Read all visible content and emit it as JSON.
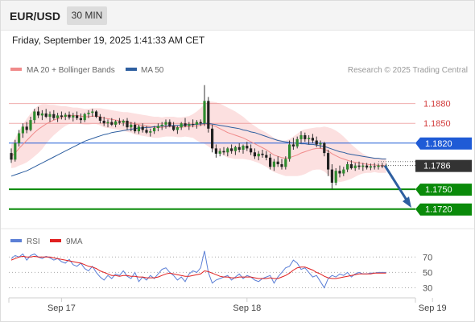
{
  "header": {
    "symbol": "EUR/USD",
    "timeframe": "30 MIN",
    "datetime": "Friday, September 19, 2025 1:41:33 AM CET"
  },
  "legend": {
    "ma20_label": "MA 20 + Bollinger Bands",
    "ma50_label": "MA 50",
    "credit": "Research © 2025 Trading Central",
    "ma20_color": "#f08a8a",
    "ma50_color": "#2e5fa0"
  },
  "rsi_legend": {
    "rsi_label": "RSI",
    "ma_label": "9MA",
    "rsi_color": "#5b7fd6",
    "ma_color": "#e02020"
  },
  "chart_data": {
    "type": "candlestick",
    "price_ylim": [
      1.1705,
      1.1915
    ],
    "levels": [
      {
        "label": "1.1880",
        "value": 1.188,
        "kind": "resistance",
        "color": "#e36b6b"
      },
      {
        "label": "1.1850",
        "value": 1.185,
        "kind": "resistance",
        "color": "#e36b6b"
      },
      {
        "label": "1.1820",
        "value": 1.182,
        "kind": "pivot",
        "color": "#1f5bd6"
      },
      {
        "label": "1.1786",
        "value": 1.1786,
        "kind": "last",
        "color": "#333333"
      },
      {
        "label": "1.1750",
        "value": 1.175,
        "kind": "support",
        "color": "#0a8a0a"
      },
      {
        "label": "1.1720",
        "value": 1.172,
        "kind": "support",
        "color": "#0a8a0a"
      }
    ],
    "x_ticks": [
      {
        "label": "Sep 17",
        "index": 13
      },
      {
        "label": "Sep 18",
        "index": 61
      },
      {
        "label": "Sep 19",
        "index": 109
      }
    ],
    "candles": [
      [
        1.1805,
        1.1812,
        1.179,
        1.1795
      ],
      [
        1.1795,
        1.1825,
        1.1792,
        1.182
      ],
      [
        1.182,
        1.184,
        1.1815,
        1.1835
      ],
      [
        1.1835,
        1.185,
        1.1828,
        1.1845
      ],
      [
        1.1845,
        1.1852,
        1.1835,
        1.184
      ],
      [
        1.184,
        1.186,
        1.1838,
        1.1855
      ],
      [
        1.1855,
        1.1872,
        1.185,
        1.1868
      ],
      [
        1.1868,
        1.1875,
        1.1858,
        1.1862
      ],
      [
        1.1862,
        1.187,
        1.1855,
        1.1865
      ],
      [
        1.1865,
        1.1872,
        1.1858,
        1.186
      ],
      [
        1.186,
        1.1868,
        1.1852,
        1.1864
      ],
      [
        1.1864,
        1.187,
        1.1855,
        1.1858
      ],
      [
        1.1858,
        1.1866,
        1.1852,
        1.1862
      ],
      [
        1.1862,
        1.1868,
        1.1856,
        1.186
      ],
      [
        1.186,
        1.1866,
        1.1855,
        1.1863
      ],
      [
        1.1863,
        1.1868,
        1.1856,
        1.1859
      ],
      [
        1.1859,
        1.1866,
        1.1853,
        1.1862
      ],
      [
        1.1862,
        1.1868,
        1.1855,
        1.1858
      ],
      [
        1.1858,
        1.1865,
        1.185,
        1.1855
      ],
      [
        1.1855,
        1.1866,
        1.1852,
        1.1864
      ],
      [
        1.1864,
        1.187,
        1.1858,
        1.1866
      ],
      [
        1.1866,
        1.1872,
        1.186,
        1.1868
      ],
      [
        1.1868,
        1.187,
        1.1858,
        1.186
      ],
      [
        1.186,
        1.1864,
        1.185,
        1.1854
      ],
      [
        1.1854,
        1.186,
        1.1846,
        1.185
      ],
      [
        1.185,
        1.1856,
        1.1844,
        1.1852
      ],
      [
        1.1852,
        1.1858,
        1.1846,
        1.1848
      ],
      [
        1.1848,
        1.1855,
        1.1844,
        1.1853
      ],
      [
        1.1853,
        1.1858,
        1.1848,
        1.1851
      ],
      [
        1.1851,
        1.1856,
        1.1846,
        1.1854
      ],
      [
        1.1854,
        1.1858,
        1.184,
        1.1844
      ],
      [
        1.1844,
        1.1852,
        1.1838,
        1.1848
      ],
      [
        1.1848,
        1.1852,
        1.1835,
        1.1838
      ],
      [
        1.1838,
        1.1848,
        1.1834,
        1.1845
      ],
      [
        1.1845,
        1.185,
        1.1836,
        1.184
      ],
      [
        1.184,
        1.1846,
        1.1834,
        1.1836
      ],
      [
        1.1836,
        1.1842,
        1.183,
        1.1838
      ],
      [
        1.1838,
        1.1846,
        1.1834,
        1.1843
      ],
      [
        1.1843,
        1.185,
        1.1838,
        1.1846
      ],
      [
        1.1846,
        1.1852,
        1.184,
        1.1848
      ],
      [
        1.1848,
        1.1856,
        1.1842,
        1.1852
      ],
      [
        1.1852,
        1.1856,
        1.1844,
        1.1846
      ],
      [
        1.1846,
        1.1852,
        1.1838,
        1.184
      ],
      [
        1.184,
        1.1846,
        1.1834,
        1.1844
      ],
      [
        1.1844,
        1.1852,
        1.184,
        1.185
      ],
      [
        1.185,
        1.1858,
        1.1844,
        1.1846
      ],
      [
        1.1846,
        1.1852,
        1.184,
        1.1849
      ],
      [
        1.1849,
        1.1856,
        1.1844,
        1.1848
      ],
      [
        1.1848,
        1.1855,
        1.1842,
        1.1852
      ],
      [
        1.1852,
        1.1856,
        1.1846,
        1.185
      ],
      [
        1.185,
        1.1908,
        1.1846,
        1.1884
      ],
      [
        1.1884,
        1.189,
        1.1836,
        1.1842
      ],
      [
        1.1842,
        1.1848,
        1.1806,
        1.1812
      ],
      [
        1.1812,
        1.1818,
        1.1798,
        1.1804
      ],
      [
        1.1804,
        1.1812,
        1.18,
        1.1808
      ],
      [
        1.1808,
        1.1814,
        1.1802,
        1.1806
      ],
      [
        1.1806,
        1.1814,
        1.18,
        1.1812
      ],
      [
        1.1812,
        1.1818,
        1.1804,
        1.1808
      ],
      [
        1.1808,
        1.1816,
        1.1802,
        1.1814
      ],
      [
        1.1814,
        1.182,
        1.1806,
        1.181
      ],
      [
        1.181,
        1.1818,
        1.1804,
        1.1816
      ],
      [
        1.1816,
        1.1822,
        1.1808,
        1.1812
      ],
      [
        1.1812,
        1.1818,
        1.1802,
        1.1806
      ],
      [
        1.1806,
        1.1812,
        1.1796,
        1.18
      ],
      [
        1.18,
        1.1808,
        1.1794,
        1.1804
      ],
      [
        1.1804,
        1.181,
        1.1798,
        1.1802
      ],
      [
        1.1802,
        1.1808,
        1.1794,
        1.1798
      ],
      [
        1.1798,
        1.1804,
        1.178,
        1.1784
      ],
      [
        1.1784,
        1.1796,
        1.1778,
        1.1792
      ],
      [
        1.1792,
        1.18,
        1.1784,
        1.1788
      ],
      [
        1.1788,
        1.1796,
        1.178,
        1.1784
      ],
      [
        1.1784,
        1.18,
        1.178,
        1.1796
      ],
      [
        1.1796,
        1.1824,
        1.1792,
        1.1818
      ],
      [
        1.1818,
        1.1828,
        1.181,
        1.1815
      ],
      [
        1.1815,
        1.183,
        1.1812,
        1.1826
      ],
      [
        1.1826,
        1.1838,
        1.182,
        1.1832
      ],
      [
        1.1832,
        1.1836,
        1.1822,
        1.1826
      ],
      [
        1.1826,
        1.1832,
        1.1818,
        1.1828
      ],
      [
        1.1828,
        1.1834,
        1.182,
        1.1824
      ],
      [
        1.1824,
        1.183,
        1.1814,
        1.1818
      ],
      [
        1.1818,
        1.1824,
        1.1812,
        1.182
      ],
      [
        1.182,
        1.1822,
        1.18,
        1.1805
      ],
      [
        1.1805,
        1.181,
        1.177,
        1.178
      ],
      [
        1.178,
        1.1788,
        1.175,
        1.176
      ],
      [
        1.176,
        1.1782,
        1.1756,
        1.1778
      ],
      [
        1.1778,
        1.1786,
        1.1768,
        1.1774
      ],
      [
        1.1774,
        1.1784,
        1.177,
        1.178
      ],
      [
        1.178,
        1.1792,
        1.1776,
        1.1788
      ],
      [
        1.1788,
        1.1794,
        1.178,
        1.1782
      ],
      [
        1.1782,
        1.179,
        1.1778,
        1.1786
      ],
      [
        1.1786,
        1.1792,
        1.178,
        1.1784
      ],
      [
        1.1784,
        1.179,
        1.1778,
        1.1786
      ],
      [
        1.1786,
        1.179,
        1.178,
        1.1783
      ],
      [
        1.1783,
        1.1789,
        1.1779,
        1.1785
      ],
      [
        1.1785,
        1.179,
        1.178,
        1.1784
      ],
      [
        1.1784,
        1.1789,
        1.178,
        1.1786
      ],
      [
        1.1786,
        1.179,
        1.1782,
        1.1785
      ],
      [
        1.1785,
        1.1789,
        1.1781,
        1.1786
      ]
    ],
    "ma20": [
      1.18,
      1.1805,
      1.1812,
      1.1818,
      1.1824,
      1.183,
      1.1836,
      1.1841,
      1.1845,
      1.1849,
      1.1852,
      1.1855,
      1.1857,
      1.1859,
      1.1861,
      1.1862,
      1.1862,
      1.1862,
      1.1861,
      1.186,
      1.186,
      1.1861,
      1.1861,
      1.186,
      1.1858,
      1.1857,
      1.1856,
      1.1855,
      1.1854,
      1.1853,
      1.1852,
      1.1851,
      1.1849,
      1.1848,
      1.1847,
      1.1846,
      1.1845,
      1.1844,
      1.1844,
      1.1844,
      1.1845,
      1.1845,
      1.1845,
      1.1844,
      1.1844,
      1.1845,
      1.1845,
      1.1846,
      1.1846,
      1.1847,
      1.1849,
      1.1849,
      1.1847,
      1.1845,
      1.1842,
      1.1839,
      1.1836,
      1.1834,
      1.1832,
      1.183,
      1.1828,
      1.1825,
      1.1822,
      1.1819,
      1.1816,
      1.1813,
      1.181,
      1.1806,
      1.1802,
      1.18,
      1.1798,
      1.1797,
      1.1798,
      1.18,
      1.1802,
      1.1805,
      1.1807,
      1.1809,
      1.1811,
      1.1812,
      1.1812,
      1.1811,
      1.1808,
      1.1804,
      1.1801,
      1.1798,
      1.1796,
      1.1794,
      1.1792,
      1.1791,
      1.179,
      1.1789,
      1.1788,
      1.1787,
      1.1787,
      1.1786,
      1.1786,
      1.1786
    ],
    "ma50": [
      1.177,
      1.1772,
      1.1774,
      1.1776,
      1.1778,
      1.1781,
      1.1784,
      1.1787,
      1.179,
      1.1793,
      1.1796,
      1.1799,
      1.1802,
      1.1805,
      1.1808,
      1.1811,
      1.1814,
      1.1817,
      1.182,
      1.1823,
      1.1825,
      1.1827,
      1.1829,
      1.1831,
      1.1833,
      1.1834,
      1.1836,
      1.1837,
      1.1838,
      1.1839,
      1.184,
      1.1841,
      1.1842,
      1.1843,
      1.1843,
      1.1844,
      1.1844,
      1.1845,
      1.1845,
      1.1846,
      1.1846,
      1.1846,
      1.1847,
      1.1847,
      1.1847,
      1.1848,
      1.1848,
      1.1848,
      1.1849,
      1.1849,
      1.185,
      1.185,
      1.1849,
      1.1848,
      1.1847,
      1.1846,
      1.1845,
      1.1844,
      1.1843,
      1.1842,
      1.184,
      1.1839,
      1.1837,
      1.1836,
      1.1834,
      1.1832,
      1.183,
      1.1828,
      1.1826,
      1.1824,
      1.1823,
      1.1822,
      1.1821,
      1.182,
      1.182,
      1.1819,
      1.1819,
      1.1818,
      1.1818,
      1.1817,
      1.1816,
      1.1815,
      1.1813,
      1.1811,
      1.1809,
      1.1807,
      1.1806,
      1.1804,
      1.1803,
      1.1802,
      1.1801,
      1.18,
      1.1799,
      1.1798,
      1.1797,
      1.1797,
      1.1796,
      1.1796
    ],
    "bb_width": [
      0.0018,
      0.0022,
      0.0026,
      0.003,
      0.0033,
      0.0035,
      0.0036,
      0.0036,
      0.0034,
      0.003,
      0.0026,
      0.0023,
      0.002,
      0.0017,
      0.0015,
      0.0013,
      0.0012,
      0.0012,
      0.0012,
      0.0012,
      0.0012,
      0.0012,
      0.0012,
      0.0013,
      0.0014,
      0.0014,
      0.0014,
      0.0014,
      0.0014,
      0.0014,
      0.0015,
      0.0015,
      0.0016,
      0.0016,
      0.0016,
      0.0016,
      0.0016,
      0.0016,
      0.0016,
      0.0015,
      0.0015,
      0.0015,
      0.0015,
      0.0015,
      0.0015,
      0.0015,
      0.0016,
      0.0018,
      0.0022,
      0.0026,
      0.003,
      0.0034,
      0.0036,
      0.0037,
      0.0038,
      0.0038,
      0.0038,
      0.0037,
      0.0036,
      0.0034,
      0.0032,
      0.003,
      0.0028,
      0.0027,
      0.0026,
      0.0026,
      0.0026,
      0.0026,
      0.0026,
      0.0026,
      0.0026,
      0.0027,
      0.0028,
      0.003,
      0.0032,
      0.0034,
      0.0034,
      0.0033,
      0.0032,
      0.0032,
      0.0032,
      0.0034,
      0.0036,
      0.0038,
      0.0038,
      0.0037,
      0.0034,
      0.003,
      0.0026,
      0.0022,
      0.0018,
      0.0015,
      0.0013,
      0.0012,
      0.0011,
      0.0011,
      0.0011,
      0.0011
    ],
    "projection": {
      "from_value": 1.1786,
      "to_value": 1.1722,
      "color": "#2e5fa0"
    },
    "rsi": {
      "ylim": [
        20,
        85
      ],
      "levels": [
        {
          "label": "70",
          "value": 70
        },
        {
          "label": "50",
          "value": 50
        },
        {
          "label": "30",
          "value": 30
        }
      ],
      "values": [
        68,
        72,
        70,
        74,
        66,
        72,
        74,
        70,
        68,
        71,
        69,
        66,
        68,
        64,
        62,
        67,
        60,
        58,
        62,
        55,
        52,
        58,
        50,
        44,
        40,
        46,
        42,
        48,
        46,
        52,
        45,
        42,
        50,
        38,
        44,
        40,
        46,
        42,
        48,
        54,
        56,
        50,
        46,
        40,
        44,
        38,
        48,
        52,
        50,
        56,
        78,
        50,
        36,
        40,
        42,
        44,
        46,
        40,
        44,
        48,
        42,
        46,
        44,
        40,
        38,
        42,
        44,
        46,
        36,
        44,
        50,
        56,
        58,
        66,
        62,
        54,
        56,
        50,
        44,
        46,
        38,
        30,
        42,
        46,
        44,
        48,
        46,
        50,
        44,
        48,
        50,
        48,
        48,
        49,
        49,
        50,
        50,
        50
      ],
      "ma9": [
        66,
        68,
        70,
        71,
        70,
        70,
        71,
        70,
        70,
        70,
        70,
        69,
        68,
        67,
        66,
        65,
        64,
        63,
        62,
        60,
        58,
        57,
        55,
        52,
        50,
        48,
        46,
        46,
        45,
        46,
        46,
        45,
        45,
        44,
        44,
        43,
        43,
        43,
        44,
        46,
        48,
        49,
        48,
        47,
        46,
        45,
        45,
        46,
        47,
        48,
        52,
        51,
        49,
        47,
        45,
        44,
        44,
        43,
        43,
        44,
        44,
        44,
        44,
        43,
        42,
        42,
        42,
        43,
        42,
        42,
        44,
        46,
        49,
        53,
        56,
        57,
        57,
        55,
        53,
        50,
        48,
        45,
        43,
        42,
        42,
        43,
        44,
        45,
        46,
        47,
        48,
        48,
        48,
        48,
        49,
        49,
        49,
        49
      ]
    }
  }
}
